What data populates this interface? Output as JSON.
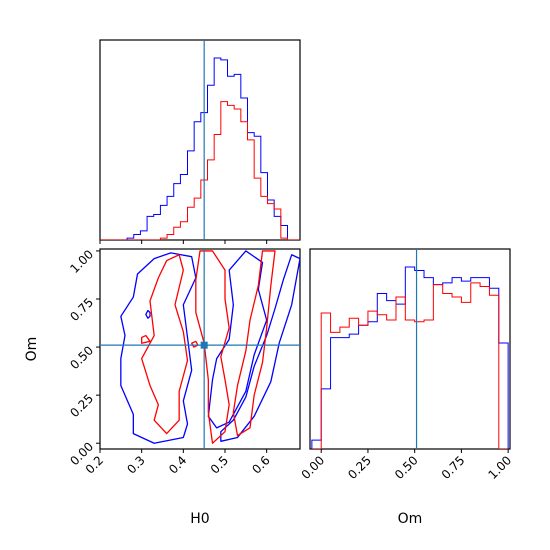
{
  "chart_data": {
    "type": "corner",
    "parameters": [
      "H0",
      "Om"
    ],
    "truths": {
      "H0": 0.45,
      "Om": 0.51
    },
    "colors": {
      "series_a": "#0000ff",
      "series_b": "#ff0000",
      "truth": "#1f77b4"
    },
    "H0_ticks": [
      "0.2",
      "0.3",
      "0.4",
      "0.5",
      "0.6"
    ],
    "Om_ticks": [
      "0.00",
      "0.25",
      "0.50",
      "0.75",
      "1.00"
    ],
    "H0_range": [
      0.2,
      0.68
    ],
    "Om_range": [
      -0.03,
      1.01
    ],
    "panels": [
      {
        "panel": "H0-marginal",
        "type": "histogram",
        "bin_edges": [
          0.2,
          0.217,
          0.233,
          0.249,
          0.265,
          0.281,
          0.297,
          0.313,
          0.329,
          0.345,
          0.361,
          0.377,
          0.393,
          0.41,
          0.426,
          0.442,
          0.458,
          0.474,
          0.49,
          0.506,
          0.522,
          0.538,
          0.554,
          0.57,
          0.586,
          0.602,
          0.618,
          0.634,
          0.65,
          0.666,
          0.682
        ],
        "series": [
          {
            "color": "blue",
            "values": [
              0.0,
              0.0,
              0.0,
              0.0,
              0.01,
              0.03,
              0.05,
              0.13,
              0.14,
              0.19,
              0.24,
              0.31,
              0.36,
              0.49,
              0.65,
              0.7,
              0.85,
              1.0,
              0.99,
              0.9,
              0.91,
              0.78,
              0.59,
              0.57,
              0.37,
              0.22,
              0.13,
              0.08,
              0.0,
              0.0
            ]
          },
          {
            "color": "red",
            "values": [
              0.0,
              0.0,
              0.0,
              0.0,
              0.0,
              0.0,
              0.0,
              0.0,
              0.0,
              0.01,
              0.03,
              0.07,
              0.1,
              0.18,
              0.23,
              0.33,
              0.44,
              0.58,
              0.76,
              0.74,
              0.72,
              0.65,
              0.55,
              0.34,
              0.24,
              0.2,
              0.17,
              0.01,
              0.0,
              0.0
            ]
          }
        ]
      },
      {
        "panel": "Om-marginal",
        "type": "histogram",
        "bin_edges": [
          -0.05,
          0.0,
          0.05,
          0.1,
          0.15,
          0.2,
          0.25,
          0.3,
          0.35,
          0.4,
          0.45,
          0.5,
          0.55,
          0.6,
          0.65,
          0.7,
          0.75,
          0.8,
          0.85,
          0.9,
          0.95,
          1.0
        ],
        "series": [
          {
            "color": "blue",
            "values": [
              0.05,
              0.34,
              0.63,
              0.63,
              0.65,
              0.7,
              0.72,
              0.88,
              0.84,
              0.82,
              1.03,
              1.01,
              0.97,
              0.93,
              0.94,
              0.97,
              0.95,
              0.97,
              0.97,
              0.91,
              0.6
            ]
          },
          {
            "color": "red",
            "values": [
              0.0,
              0.77,
              0.66,
              0.69,
              0.74,
              0.7,
              0.78,
              0.76,
              0.73,
              0.86,
              0.73,
              0.72,
              0.73,
              0.93,
              0.88,
              0.86,
              0.83,
              0.94,
              0.92,
              0.87,
              0.0
            ]
          }
        ]
      },
      {
        "panel": "H0-Om-joint",
        "type": "contour",
        "series": [
          {
            "color": "blue",
            "contours": [
              [
                [
                  0.37,
                  0.99
                ],
                [
                  0.42,
                  0.97
                ],
                [
                  0.43,
                  0.86
                ],
                [
                  0.4,
                  0.72
                ],
                [
                  0.41,
                  0.55
                ],
                [
                  0.42,
                  0.38
                ],
                [
                  0.4,
                  0.22
                ],
                [
                  0.41,
                  0.1
                ],
                [
                  0.4,
                  0.03
                ],
                [
                  0.33,
                  0.0
                ],
                [
                  0.28,
                  0.05
                ],
                [
                  0.28,
                  0.15
                ],
                [
                  0.25,
                  0.3
                ],
                [
                  0.25,
                  0.44
                ],
                [
                  0.26,
                  0.56
                ],
                [
                  0.25,
                  0.66
                ],
                [
                  0.28,
                  0.76
                ],
                [
                  0.29,
                  0.88
                ],
                [
                  0.33,
                  0.96
                ]
              ],
              [
                [
                  0.49,
                  0.01
                ],
                [
                  0.53,
                  0.03
                ],
                [
                  0.57,
                  0.14
                ],
                [
                  0.61,
                  0.32
                ],
                [
                  0.63,
                  0.52
                ],
                [
                  0.66,
                  0.72
                ],
                [
                  0.68,
                  0.96
                ],
                [
                  0.66,
                  0.98
                ],
                [
                  0.64,
                  0.85
                ],
                [
                  0.62,
                  0.7
                ],
                [
                  0.6,
                  0.56
                ],
                [
                  0.57,
                  0.4
                ],
                [
                  0.55,
                  0.24
                ],
                [
                  0.52,
                  0.12
                ],
                [
                  0.49,
                  0.06
                ]
              ],
              [
                [
                  0.46,
                  0.14
                ],
                [
                  0.47,
                  0.33
                ],
                [
                  0.48,
                  0.44
                ],
                [
                  0.51,
                  0.54
                ],
                [
                  0.52,
                  0.72
                ],
                [
                  0.51,
                  0.9
                ],
                [
                  0.55,
                  1.0
                ],
                [
                  0.59,
                  0.94
                ],
                [
                  0.58,
                  0.8
                ],
                [
                  0.6,
                  0.64
                ],
                [
                  0.57,
                  0.46
                ],
                [
                  0.55,
                  0.27
                ],
                [
                  0.51,
                  0.11
                ],
                [
                  0.48,
                  0.08
                ]
              ],
              [
                [
                  0.315,
                  0.65
                ],
                [
                  0.32,
                  0.66
                ],
                [
                  0.32,
                  0.68
                ],
                [
                  0.315,
                  0.69
                ],
                [
                  0.31,
                  0.67
                ]
              ]
            ]
          },
          {
            "color": "red",
            "contours": [
              [
                [
                  0.36,
                  0.95
                ],
                [
                  0.39,
                  0.98
                ],
                [
                  0.4,
                  0.9
                ],
                [
                  0.38,
                  0.72
                ],
                [
                  0.4,
                  0.58
                ],
                [
                  0.41,
                  0.43
                ],
                [
                  0.39,
                  0.27
                ],
                [
                  0.39,
                  0.12
                ],
                [
                  0.36,
                  0.05
                ],
                [
                  0.33,
                  0.12
                ],
                [
                  0.34,
                  0.2
                ],
                [
                  0.32,
                  0.3
                ],
                [
                  0.3,
                  0.44
                ],
                [
                  0.33,
                  0.56
                ],
                [
                  0.32,
                  0.74
                ],
                [
                  0.34,
                  0.86
                ]
              ],
              [
                [
                  0.44,
                  1.0
                ],
                [
                  0.43,
                  0.85
                ],
                [
                  0.43,
                  0.68
                ],
                [
                  0.45,
                  0.52
                ],
                [
                  0.46,
                  0.33
                ],
                [
                  0.46,
                  0.16
                ],
                [
                  0.47,
                  0.0
                ],
                [
                  0.5,
                  0.06
                ],
                [
                  0.51,
                  0.2
                ],
                [
                  0.5,
                  0.33
                ],
                [
                  0.49,
                  0.45
                ],
                [
                  0.51,
                  0.6
                ],
                [
                  0.5,
                  0.75
                ],
                [
                  0.5,
                  0.9
                ],
                [
                  0.47,
                  1.0
                ]
              ],
              [
                [
                  0.53,
                  0.04
                ],
                [
                  0.56,
                  0.08
                ],
                [
                  0.57,
                  0.25
                ],
                [
                  0.59,
                  0.42
                ],
                [
                  0.6,
                  0.6
                ],
                [
                  0.61,
                  0.82
                ],
                [
                  0.62,
                  1.0
                ],
                [
                  0.59,
                  1.0
                ],
                [
                  0.58,
                  0.82
                ],
                [
                  0.56,
                  0.64
                ],
                [
                  0.55,
                  0.48
                ],
                [
                  0.53,
                  0.3
                ],
                [
                  0.52,
                  0.16
                ]
              ],
              [
                [
                  0.3,
                  0.52
                ],
                [
                  0.32,
                  0.53
                ],
                [
                  0.31,
                  0.56
                ],
                [
                  0.3,
                  0.55
                ]
              ],
              [
                [
                  0.425,
                  0.5
                ],
                [
                  0.435,
                  0.51
                ],
                [
                  0.43,
                  0.53
                ],
                [
                  0.42,
                  0.52
                ]
              ]
            ]
          }
        ]
      }
    ]
  },
  "axes": {
    "xlabel_left": "H0",
    "xlabel_right": "Om",
    "ylabel": "Om"
  }
}
